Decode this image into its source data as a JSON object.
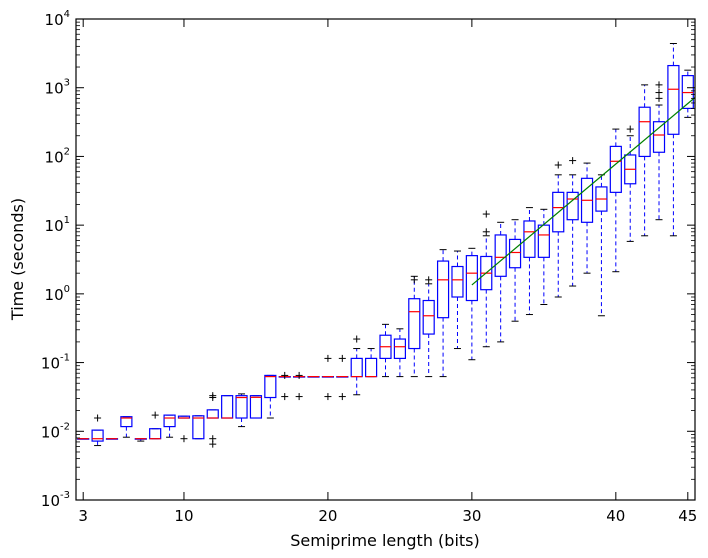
{
  "chart_data": {
    "type": "box",
    "xlabel": "Semiprime length (bits)",
    "ylabel": "Time (seconds)",
    "xlim": [
      2.5,
      45.5
    ],
    "ylim": [
      0.001,
      10000
    ],
    "yscale": "log",
    "x_ticks": [
      3,
      10,
      20,
      30,
      40,
      45
    ],
    "y_ticks": [
      {
        "value": 0.001,
        "base": "10",
        "exp": "-3"
      },
      {
        "value": 0.01,
        "base": "10",
        "exp": "-2"
      },
      {
        "value": 0.1,
        "base": "10",
        "exp": "-1"
      },
      {
        "value": 1,
        "base": "10",
        "exp": "0"
      },
      {
        "value": 10,
        "base": "10",
        "exp": "1"
      },
      {
        "value": 100,
        "base": "10",
        "exp": "2"
      },
      {
        "value": 1000,
        "base": "10",
        "exp": "3"
      },
      {
        "value": 10000,
        "base": "10",
        "exp": "4"
      }
    ],
    "colors": {
      "box": "#0000ff",
      "median": "#ff0000",
      "fit": "#008000",
      "outlier": "#000000"
    },
    "boxes": [
      {
        "x": 3,
        "q1": 0.0078,
        "median": 0.0078,
        "q3": 0.0078,
        "wlo": 0.0078,
        "whi": 0.0078,
        "outliers": []
      },
      {
        "x": 4,
        "q1": 0.0072,
        "median": 0.0078,
        "q3": 0.0104,
        "wlo": 0.0062,
        "whi": 0.0104,
        "outliers": [
          0.0156
        ]
      },
      {
        "x": 5,
        "q1": 0.0078,
        "median": 0.0078,
        "q3": 0.0078,
        "wlo": 0.0078,
        "whi": 0.0078,
        "outliers": []
      },
      {
        "x": 6,
        "q1": 0.0117,
        "median": 0.0156,
        "q3": 0.0163,
        "wlo": 0.0082,
        "whi": 0.0163,
        "outliers": []
      },
      {
        "x": 7,
        "q1": 0.0078,
        "median": 0.0078,
        "q3": 0.0078,
        "wlo": 0.0072,
        "whi": 0.0078,
        "outliers": []
      },
      {
        "x": 8,
        "q1": 0.0078,
        "median": 0.0078,
        "q3": 0.0109,
        "wlo": 0.0078,
        "whi": 0.0109,
        "outliers": [
          0.0172
        ]
      },
      {
        "x": 9,
        "q1": 0.0117,
        "median": 0.0156,
        "q3": 0.0172,
        "wlo": 0.0082,
        "whi": 0.0172,
        "outliers": []
      },
      {
        "x": 10,
        "q1": 0.0156,
        "median": 0.0156,
        "q3": 0.0166,
        "wlo": 0.0156,
        "whi": 0.0166,
        "outliers": [
          0.0078
        ]
      },
      {
        "x": 11,
        "q1": 0.0078,
        "median": 0.0156,
        "q3": 0.0168,
        "wlo": 0.0078,
        "whi": 0.0168,
        "outliers": []
      },
      {
        "x": 12,
        "q1": 0.0156,
        "median": 0.0156,
        "q3": 0.0205,
        "wlo": 0.0156,
        "whi": 0.0205,
        "outliers": [
          0.0078,
          0.0065,
          0.031,
          0.033
        ]
      },
      {
        "x": 13,
        "q1": 0.0156,
        "median": 0.0156,
        "q3": 0.033,
        "wlo": 0.0156,
        "whi": 0.033,
        "outliers": []
      },
      {
        "x": 14,
        "q1": 0.0156,
        "median": 0.031,
        "q3": 0.033,
        "wlo": 0.0117,
        "whi": 0.035,
        "outliers": []
      },
      {
        "x": 15,
        "q1": 0.0156,
        "median": 0.0312,
        "q3": 0.033,
        "wlo": 0.0156,
        "whi": 0.033,
        "outliers": []
      },
      {
        "x": 16,
        "q1": 0.031,
        "median": 0.0625,
        "q3": 0.065,
        "wlo": 0.0156,
        "whi": 0.065,
        "outliers": []
      },
      {
        "x": 17,
        "q1": 0.0625,
        "median": 0.0625,
        "q3": 0.0625,
        "wlo": 0.0625,
        "whi": 0.0625,
        "outliers": [
          0.032,
          0.065
        ]
      },
      {
        "x": 18,
        "q1": 0.0625,
        "median": 0.0625,
        "q3": 0.0625,
        "wlo": 0.0625,
        "whi": 0.0625,
        "outliers": [
          0.032,
          0.065
        ]
      },
      {
        "x": 19,
        "q1": 0.0625,
        "median": 0.0625,
        "q3": 0.0625,
        "wlo": 0.0625,
        "whi": 0.0625,
        "outliers": []
      },
      {
        "x": 20,
        "q1": 0.0625,
        "median": 0.0625,
        "q3": 0.0625,
        "wlo": 0.0625,
        "whi": 0.0625,
        "outliers": [
          0.032,
          0.115
        ]
      },
      {
        "x": 21,
        "q1": 0.0625,
        "median": 0.0625,
        "q3": 0.0625,
        "wlo": 0.0625,
        "whi": 0.0625,
        "outliers": [
          0.032,
          0.115
        ]
      },
      {
        "x": 22,
        "q1": 0.0625,
        "median": 0.0625,
        "q3": 0.115,
        "wlo": 0.034,
        "whi": 0.16,
        "outliers": [
          0.22
        ]
      },
      {
        "x": 23,
        "q1": 0.0625,
        "median": 0.0625,
        "q3": 0.115,
        "wlo": 0.0625,
        "whi": 0.16,
        "outliers": []
      },
      {
        "x": 24,
        "q1": 0.115,
        "median": 0.17,
        "q3": 0.25,
        "wlo": 0.0625,
        "whi": 0.36,
        "outliers": []
      },
      {
        "x": 25,
        "q1": 0.115,
        "median": 0.17,
        "q3": 0.22,
        "wlo": 0.0625,
        "whi": 0.31,
        "outliers": []
      },
      {
        "x": 26,
        "q1": 0.16,
        "median": 0.55,
        "q3": 0.85,
        "wlo": 0.0625,
        "whi": 1.8,
        "outliers": [
          1.6
        ]
      },
      {
        "x": 27,
        "q1": 0.26,
        "median": 0.48,
        "q3": 0.8,
        "wlo": 0.0625,
        "whi": 1.4,
        "outliers": [
          1.6
        ]
      },
      {
        "x": 28,
        "q1": 0.45,
        "median": 1.6,
        "q3": 3.0,
        "wlo": 0.0625,
        "whi": 4.4,
        "outliers": []
      },
      {
        "x": 29,
        "q1": 0.9,
        "median": 1.6,
        "q3": 2.5,
        "wlo": 0.16,
        "whi": 4.2,
        "outliers": []
      },
      {
        "x": 30,
        "q1": 0.8,
        "median": 2.0,
        "q3": 3.6,
        "wlo": 0.11,
        "whi": 4.6,
        "outliers": []
      },
      {
        "x": 31,
        "q1": 1.15,
        "median": 2.0,
        "q3": 3.5,
        "wlo": 0.17,
        "whi": 7.0,
        "outliers": [
          8.0,
          14.5
        ]
      },
      {
        "x": 32,
        "q1": 1.8,
        "median": 3.4,
        "q3": 7.2,
        "wlo": 0.2,
        "whi": 11.0,
        "outliers": []
      },
      {
        "x": 33,
        "q1": 2.4,
        "median": 4.0,
        "q3": 6.2,
        "wlo": 0.4,
        "whi": 12.0,
        "outliers": []
      },
      {
        "x": 34,
        "q1": 3.4,
        "median": 8.0,
        "q3": 11.5,
        "wlo": 0.5,
        "whi": 18.0,
        "outliers": []
      },
      {
        "x": 35,
        "q1": 3.4,
        "median": 7.2,
        "q3": 10.0,
        "wlo": 0.7,
        "whi": 17.0,
        "outliers": []
      },
      {
        "x": 36,
        "q1": 8.0,
        "median": 18.0,
        "q3": 30.0,
        "wlo": 0.9,
        "whi": 54.0,
        "outliers": [
          75.0
        ]
      },
      {
        "x": 37,
        "q1": 12.0,
        "median": 24.0,
        "q3": 30.0,
        "wlo": 1.3,
        "whi": 54.0,
        "outliers": [
          87.0
        ]
      },
      {
        "x": 38,
        "q1": 11.0,
        "median": 23.0,
        "q3": 48.0,
        "wlo": 2.0,
        "whi": 80.0,
        "outliers": []
      },
      {
        "x": 39,
        "q1": 16.0,
        "median": 24.0,
        "q3": 36.0,
        "wlo": 0.48,
        "whi": 54.0,
        "outliers": []
      },
      {
        "x": 40,
        "q1": 30.0,
        "median": 85.0,
        "q3": 140.0,
        "wlo": 2.1,
        "whi": 250.0,
        "outliers": []
      },
      {
        "x": 41,
        "q1": 40.0,
        "median": 65.0,
        "q3": 105.0,
        "wlo": 5.8,
        "whi": 200.0,
        "outliers": [
          250.0
        ]
      },
      {
        "x": 42,
        "q1": 100.0,
        "median": 320.0,
        "q3": 520.0,
        "wlo": 7.0,
        "whi": 1100.0,
        "outliers": []
      },
      {
        "x": 43,
        "q1": 115.0,
        "median": 205.0,
        "q3": 320.0,
        "wlo": 12.0,
        "whi": 560.0,
        "outliers": [
          700.0,
          850.0,
          1100.0
        ]
      },
      {
        "x": 44,
        "q1": 210.0,
        "median": 950.0,
        "q3": 2100.0,
        "wlo": 7.0,
        "whi": 4400.0,
        "outliers": []
      },
      {
        "x": 45,
        "q1": 500.0,
        "median": 850.0,
        "q3": 1500.0,
        "wlo": 370.0,
        "whi": 1800.0,
        "outliers": []
      }
    ],
    "fit_line": {
      "x": [
        30,
        45.5
      ],
      "y": [
        1.35,
        720
      ]
    }
  }
}
